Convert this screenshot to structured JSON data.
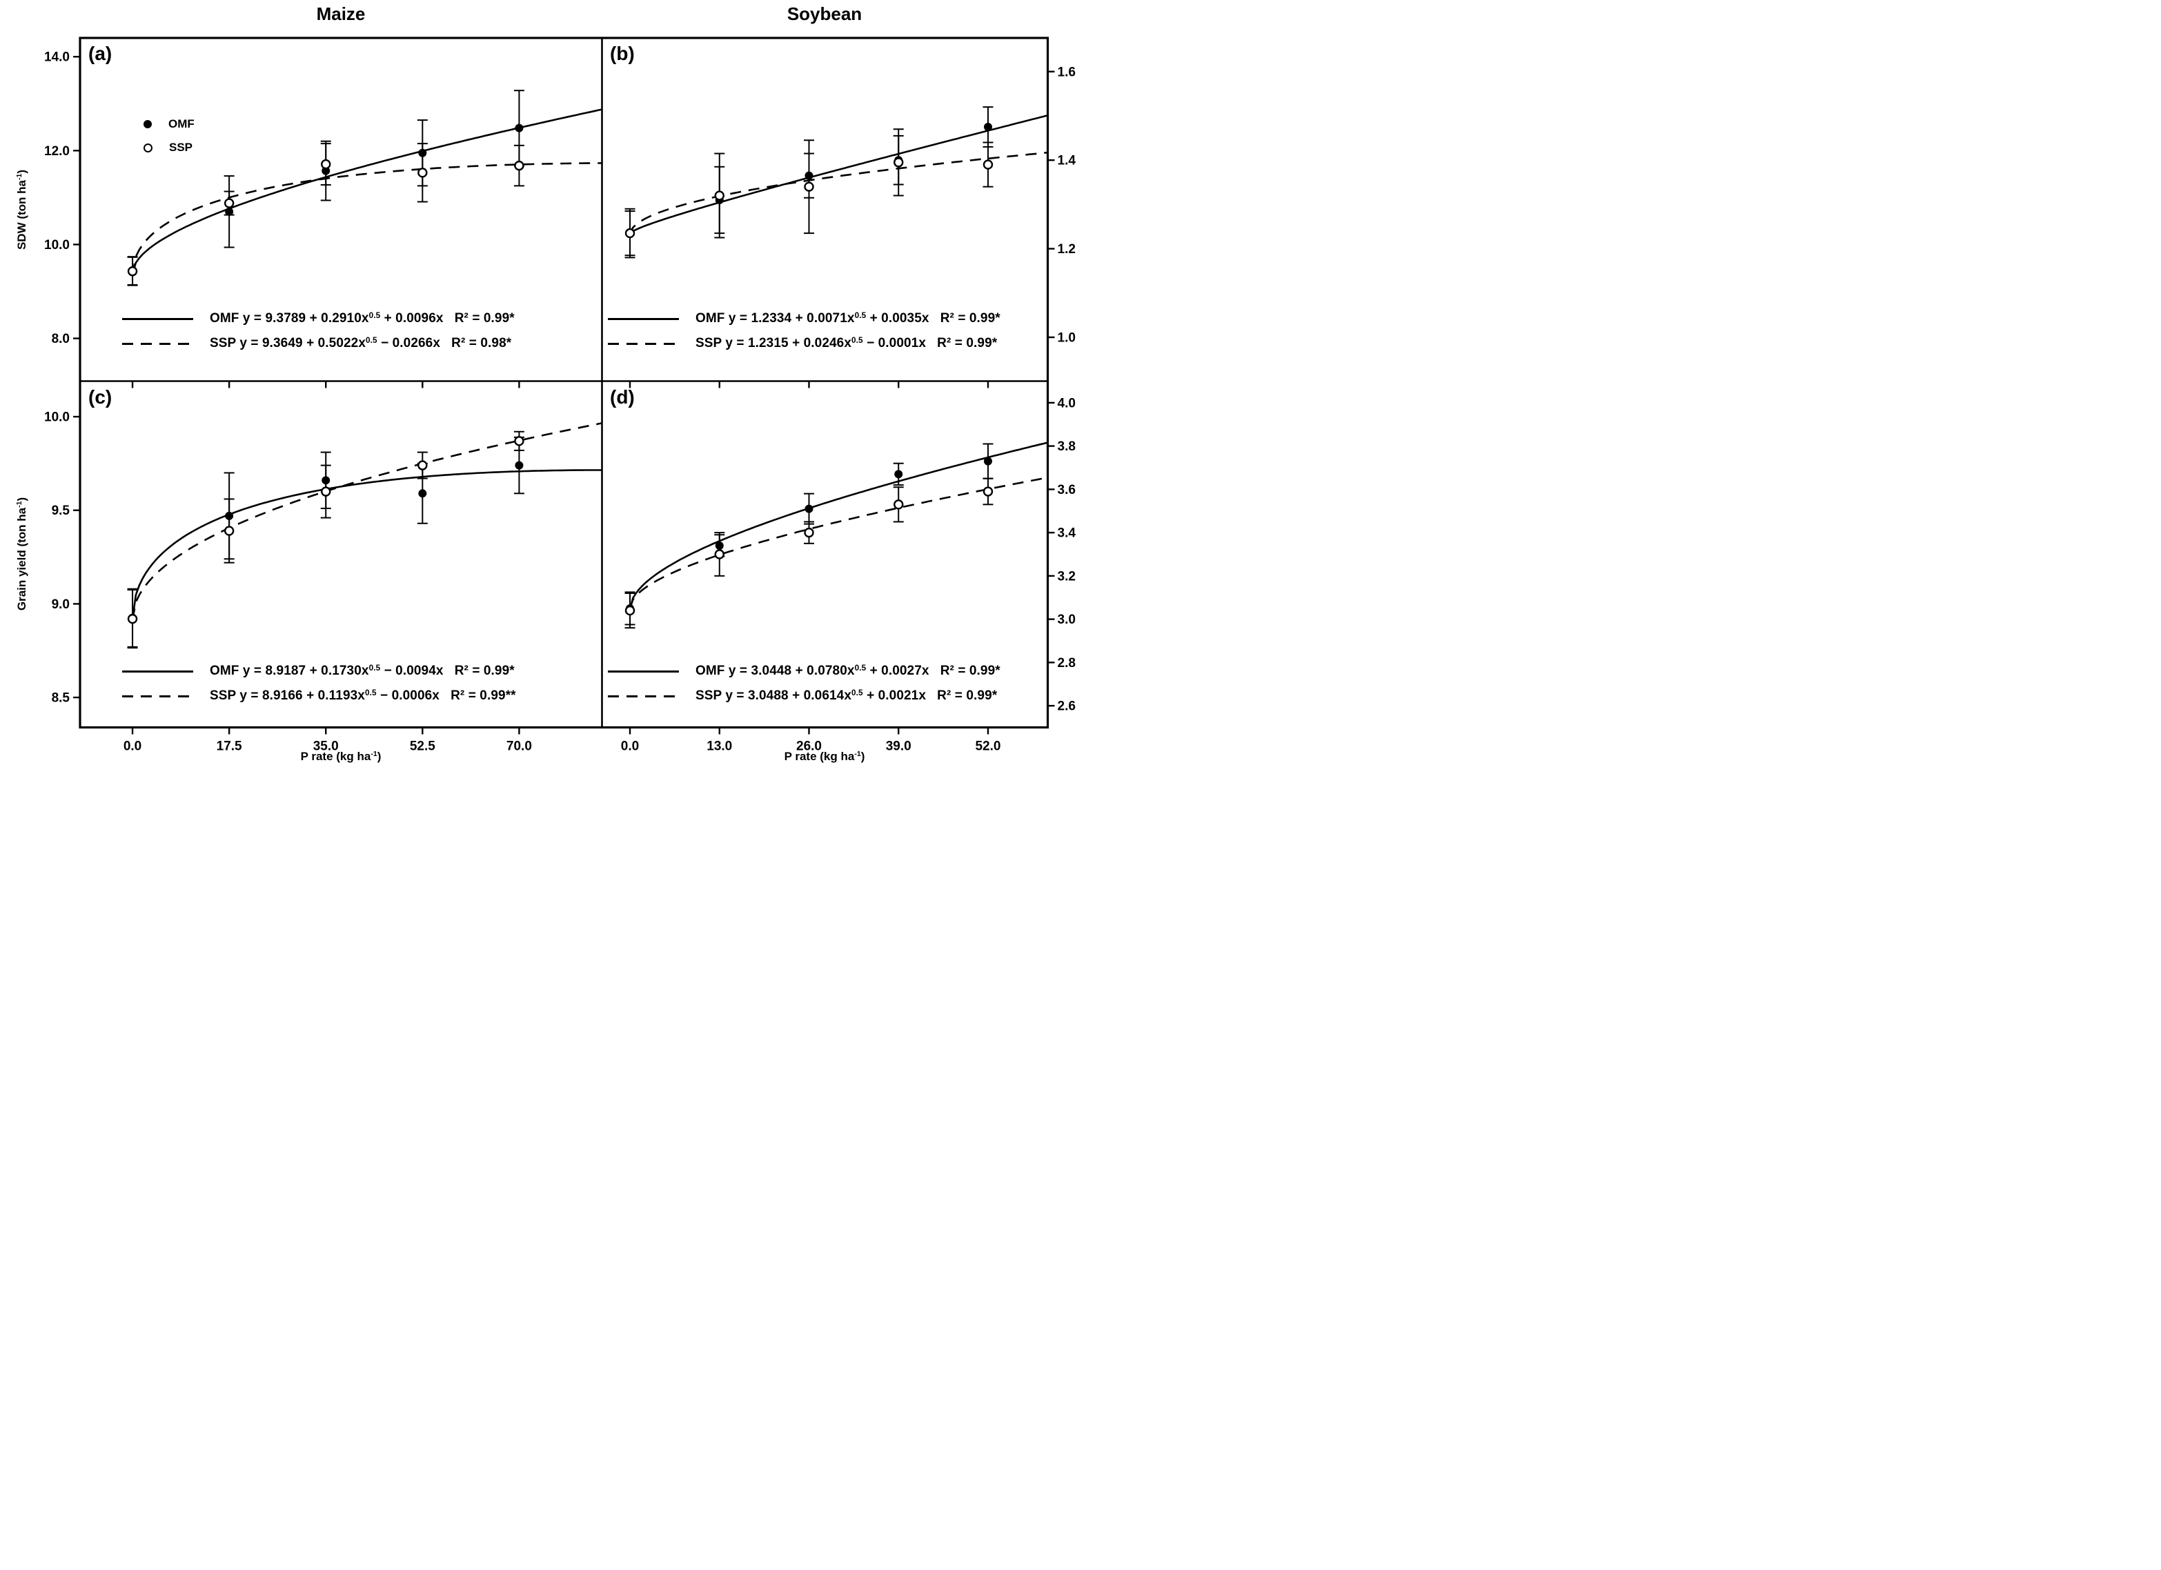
{
  "figure": {
    "column_titles": [
      "Maize",
      "Soybean"
    ],
    "y_axis_labels": [
      {
        "pre": "SDW (ton ha",
        "sup": "-1",
        "post": ")"
      },
      {
        "pre": "Grain yield (ton ha",
        "sup": "-1",
        "post": ")"
      }
    ],
    "x_axis_labels": [
      {
        "pre": "P rate (kg ha",
        "sup": "-1",
        "post": ")"
      },
      {
        "pre": "P rate (kg ha",
        "sup": "-1",
        "post": ")"
      }
    ],
    "legend": {
      "items": [
        {
          "label": "OMF",
          "marker": "filled-circle"
        },
        {
          "label": "SSP",
          "marker": "open-circle"
        }
      ]
    }
  },
  "chart_data": {
    "type": "scatter",
    "description": "Four-panel regression figure: shoot dry weight (SDW) and grain yield responses of maize and soybean to P rate for OMF (solid line, filled circles) and SSP (dashed line, open circles) fertilizers, with vertical error bars and square-root regression fits.",
    "panels": [
      {
        "label": "(a)",
        "crop": "Maize",
        "measure": "SDW (ton ha-1)",
        "x_axis": {
          "range": [
            -9.5,
            85.0
          ],
          "ticks": [
            0,
            17.5,
            35,
            52.5,
            70
          ],
          "tick_labels": [
            "0.0",
            "17.5",
            "35.0",
            "52.5",
            "70.0"
          ],
          "labels_visible": false
        },
        "y_axis": {
          "range": [
            7.09,
            14.4
          ],
          "ticks": [
            14,
            12,
            10,
            8
          ],
          "tick_labels": [
            "14.0",
            "12.0",
            "10.0",
            "8.0"
          ],
          "side": "left"
        },
        "series": [
          {
            "name": "OMF",
            "marker": "filled-circle",
            "line": "solid",
            "fit": {
              "intercept": 9.3789,
              "sqrt_coef": 0.291,
              "lin_coef": 0.0096
            },
            "points": [
              {
                "x": 0,
                "y": 9.44,
                "err": 0.3
              },
              {
                "x": 17.5,
                "y": 10.7,
                "err": 0.76
              },
              {
                "x": 35,
                "y": 11.57,
                "err": 0.63
              },
              {
                "x": 52.5,
                "y": 11.95,
                "err": 0.7
              },
              {
                "x": 70,
                "y": 12.48,
                "err": 0.8
              }
            ]
          },
          {
            "name": "SSP",
            "marker": "open-circle",
            "line": "dashed",
            "fit": {
              "intercept": 9.3649,
              "sqrt_coef": 0.5022,
              "lin_coef": -0.0266
            },
            "points": [
              {
                "x": 0,
                "y": 9.43,
                "err": 0.3
              },
              {
                "x": 17.5,
                "y": 10.88,
                "err": 0.25
              },
              {
                "x": 35,
                "y": 11.71,
                "err": 0.44
              },
              {
                "x": 52.5,
                "y": 11.53,
                "err": 0.62
              },
              {
                "x": 70,
                "y": 11.68,
                "err": 0.43
              }
            ]
          }
        ],
        "equations": [
          {
            "series": "OMF",
            "pre": "OMF y = 9.3789 + 0.2910x",
            "sup": "0.5",
            "post": " + 0.0096x   R² = 0.99*"
          },
          {
            "series": "SSP",
            "pre": "SSP y = 9.3649 + 0.5022x",
            "sup": "0.5",
            "post": " − 0.0266x   R² = 0.98*"
          }
        ]
      },
      {
        "label": "(b)",
        "crop": "Soybean",
        "measure": "SDW (ton ha-1)",
        "x_axis": {
          "range": [
            -4.06,
            60.67
          ],
          "ticks": [
            0,
            13,
            26,
            39,
            52
          ],
          "tick_labels": [
            "0.0",
            "13.0",
            "26.0",
            "39.0",
            "52.0"
          ],
          "labels_visible": false
        },
        "y_axis": {
          "range": [
            0.901,
            1.676
          ],
          "ticks": [
            1.6,
            1.4,
            1.2,
            1.0
          ],
          "tick_labels": [
            "1.6",
            "1.4",
            "1.2",
            "1.0"
          ],
          "side": "right"
        },
        "series": [
          {
            "name": "OMF",
            "marker": "filled-circle",
            "line": "solid",
            "fit": {
              "intercept": 1.2334,
              "sqrt_coef": 0.0071,
              "lin_coef": 0.0035
            },
            "points": [
              {
                "x": 0,
                "y": 1.235,
                "err": 0.05
              },
              {
                "x": 13,
                "y": 1.31,
                "err": 0.075
              },
              {
                "x": 26,
                "y": 1.365,
                "err": 0.05
              },
              {
                "x": 39,
                "y": 1.4,
                "err": 0.055
              },
              {
                "x": 52,
                "y": 1.475,
                "err": 0.045
              }
            ]
          },
          {
            "name": "SSP",
            "marker": "open-circle",
            "line": "dashed",
            "fit": {
              "intercept": 1.2315,
              "sqrt_coef": 0.0246,
              "lin_coef": -0.0001
            },
            "points": [
              {
                "x": 0,
                "y": 1.235,
                "err": 0.055
              },
              {
                "x": 13,
                "y": 1.32,
                "err": 0.095
              },
              {
                "x": 26,
                "y": 1.34,
                "err": 0.105
              },
              {
                "x": 39,
                "y": 1.395,
                "err": 0.075
              },
              {
                "x": 52,
                "y": 1.39,
                "err": 0.05
              }
            ]
          }
        ],
        "equations": [
          {
            "series": "OMF",
            "pre": "OMF y = 1.2334 + 0.0071x",
            "sup": "0.5",
            "post": " + 0.0035x   R² = 0.99*"
          },
          {
            "series": "SSP",
            "pre": "SSP y = 1.2315 + 0.0246x",
            "sup": "0.5",
            "post": " − 0.0001x   R² = 0.99*"
          }
        ]
      },
      {
        "label": "(c)",
        "crop": "Maize",
        "measure": "Grain yield (ton ha-1)",
        "x_axis": {
          "range": [
            -9.5,
            85.0
          ],
          "ticks": [
            0,
            17.5,
            35,
            52.5,
            70
          ],
          "tick_labels": [
            "0.0",
            "17.5",
            "35.0",
            "52.5",
            "70.0"
          ],
          "labels_visible": true
        },
        "y_axis": {
          "range": [
            8.34,
            10.19
          ],
          "ticks": [
            10,
            9.5,
            9,
            8.5
          ],
          "tick_labels": [
            "10.0",
            "9.5",
            "9.0",
            "8.5"
          ],
          "side": "left"
        },
        "series": [
          {
            "name": "OMF",
            "marker": "filled-circle",
            "line": "solid",
            "fit": {
              "intercept": 8.9187,
              "sqrt_coef": 0.173,
              "lin_coef": -0.0094
            },
            "points": [
              {
                "x": 0,
                "y": 8.925,
                "err": 0.155
              },
              {
                "x": 17.5,
                "y": 9.47,
                "err": 0.23
              },
              {
                "x": 35,
                "y": 9.66,
                "err": 0.15
              },
              {
                "x": 52.5,
                "y": 9.59,
                "err": 0.16
              },
              {
                "x": 70,
                "y": 9.74,
                "err": 0.15
              }
            ]
          },
          {
            "name": "SSP",
            "marker": "open-circle",
            "line": "dashed",
            "fit": {
              "intercept": 8.9166,
              "sqrt_coef": 0.1193,
              "lin_coef": -0.0006
            },
            "points": [
              {
                "x": 0,
                "y": 8.92,
                "err": 0.155
              },
              {
                "x": 17.5,
                "y": 9.39,
                "err": 0.17
              },
              {
                "x": 35,
                "y": 9.6,
                "err": 0.14
              },
              {
                "x": 52.5,
                "y": 9.74,
                "err": 0.07
              },
              {
                "x": 70,
                "y": 9.87,
                "err": 0.05
              }
            ]
          }
        ],
        "equations": [
          {
            "series": "OMF",
            "pre": "OMF y = 8.9187 + 0.1730x",
            "sup": "0.5",
            "post": " − 0.0094x   R² = 0.99*"
          },
          {
            "series": "SSP",
            "pre": "SSP y = 8.9166 + 0.1193x",
            "sup": "0.5",
            "post": " − 0.0006x   R² = 0.99**"
          }
        ]
      },
      {
        "label": "(d)",
        "crop": "Soybean",
        "measure": "Grain yield (ton ha-1)",
        "x_axis": {
          "range": [
            -4.06,
            60.67
          ],
          "ticks": [
            0,
            13,
            26,
            39,
            52
          ],
          "tick_labels": [
            "0.0",
            "13.0",
            "26.0",
            "39.0",
            "52.0"
          ],
          "labels_visible": true
        },
        "y_axis": {
          "range": [
            2.5,
            4.1
          ],
          "ticks": [
            4.0,
            3.8,
            3.6,
            3.4,
            3.2,
            3.0,
            2.8,
            2.6
          ],
          "tick_labels": [
            "4.0",
            "3.8",
            "3.6",
            "3.4",
            "3.2",
            "3.0",
            "2.8",
            "2.6"
          ],
          "side": "right"
        },
        "series": [
          {
            "name": "OMF",
            "marker": "filled-circle",
            "line": "solid",
            "fit": {
              "intercept": 3.0448,
              "sqrt_coef": 0.078,
              "lin_coef": 0.0027
            },
            "points": [
              {
                "x": 0,
                "y": 3.05,
                "err": 0.075
              },
              {
                "x": 13,
                "y": 3.34,
                "err": 0.05
              },
              {
                "x": 26,
                "y": 3.51,
                "err": 0.07
              },
              {
                "x": 39,
                "y": 3.67,
                "err": 0.05
              },
              {
                "x": 52,
                "y": 3.73,
                "err": 0.08
              }
            ]
          },
          {
            "name": "SSP",
            "marker": "open-circle",
            "line": "dashed",
            "fit": {
              "intercept": 3.0488,
              "sqrt_coef": 0.0614,
              "lin_coef": 0.0021
            },
            "points": [
              {
                "x": 0,
                "y": 3.04,
                "err": 0.08
              },
              {
                "x": 13,
                "y": 3.3,
                "err": 0.1
              },
              {
                "x": 26,
                "y": 3.4,
                "err": 0.05
              },
              {
                "x": 39,
                "y": 3.53,
                "err": 0.08
              },
              {
                "x": 52,
                "y": 3.59,
                "err": 0.06
              }
            ]
          }
        ],
        "equations": [
          {
            "series": "OMF",
            "pre": "OMF y = 3.0448 + 0.0780x",
            "sup": "0.5",
            "post": " + 0.0027x   R² = 0.99*"
          },
          {
            "series": "SSP",
            "pre": "SSP y = 3.0488 + 0.0614x",
            "sup": "0.5",
            "post": " + 0.0021x   R² = 0.99*"
          }
        ]
      }
    ]
  }
}
